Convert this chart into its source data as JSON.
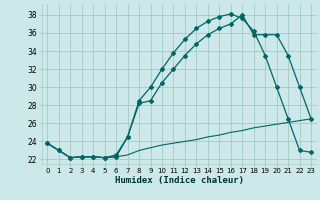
{
  "background_color": "#cce8e8",
  "grid_color": "#aacccc",
  "line_color": "#006666",
  "xlabel": "Humidex (Indice chaleur)",
  "xlim": [
    -0.5,
    23.5
  ],
  "ylim": [
    21.5,
    39.2
  ],
  "yticks": [
    22,
    24,
    26,
    28,
    30,
    32,
    34,
    36,
    38
  ],
  "xticks": [
    0,
    1,
    2,
    3,
    4,
    5,
    6,
    7,
    8,
    9,
    10,
    11,
    12,
    13,
    14,
    15,
    16,
    17,
    18,
    19,
    20,
    21,
    22,
    23
  ],
  "curve1_x": [
    0,
    1,
    2,
    3,
    4,
    5,
    6,
    7,
    8,
    9,
    10,
    11,
    12,
    13,
    14,
    15,
    16,
    17,
    18,
    19,
    20,
    21,
    22,
    23
  ],
  "curve1_y": [
    23.8,
    23.0,
    22.2,
    22.3,
    22.3,
    22.2,
    22.3,
    24.5,
    28.5,
    30.0,
    32.0,
    33.8,
    35.3,
    36.5,
    37.3,
    37.8,
    38.1,
    37.6,
    36.2,
    33.5,
    30.0,
    26.5,
    23.0,
    22.8
  ],
  "curve2_x": [
    0,
    1,
    2,
    3,
    4,
    5,
    6,
    7,
    8,
    9,
    10,
    11,
    12,
    13,
    14,
    15,
    16,
    17,
    18,
    19,
    20,
    21,
    22,
    23
  ],
  "curve2_y": [
    23.8,
    23.0,
    22.2,
    22.3,
    22.3,
    22.2,
    22.5,
    24.5,
    28.2,
    28.5,
    30.5,
    32.0,
    33.5,
    34.8,
    35.8,
    36.5,
    37.0,
    38.0,
    35.8,
    35.8,
    35.8,
    33.5,
    30.0,
    26.5
  ],
  "curve3_x": [
    0,
    1,
    2,
    3,
    4,
    5,
    6,
    7,
    8,
    9,
    10,
    11,
    12,
    13,
    14,
    15,
    16,
    17,
    18,
    19,
    20,
    21,
    22,
    23
  ],
  "curve3_y": [
    23.8,
    23.0,
    22.2,
    22.3,
    22.3,
    22.2,
    22.3,
    22.5,
    23.0,
    23.3,
    23.6,
    23.8,
    24.0,
    24.2,
    24.5,
    24.7,
    25.0,
    25.2,
    25.5,
    25.7,
    25.9,
    26.1,
    26.3,
    26.5
  ]
}
